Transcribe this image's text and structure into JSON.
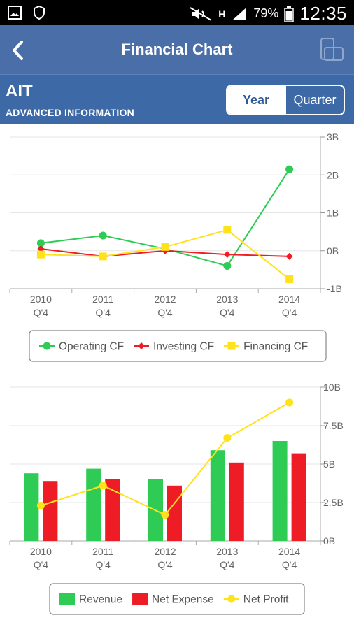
{
  "status_bar": {
    "battery": "79%",
    "time": "12:35",
    "network": "H",
    "icons": [
      "image-icon",
      "shield-icon",
      "mute-icon",
      "signal-icon",
      "battery-icon"
    ]
  },
  "app_bar": {
    "title": "Financial Chart",
    "back_icon": "chevron-left-icon",
    "rotate_icon": "rotate-screen-icon"
  },
  "sub_bar": {
    "symbol": "AIT",
    "company": "ADVANCED INFORMATION",
    "toggle": {
      "options": [
        "Year",
        "Quarter"
      ],
      "selected": "Year"
    }
  },
  "colors": {
    "header": "#4a6ea8",
    "subheader": "#3d6aa6",
    "green": "#2ecc55",
    "red": "#ee1c24",
    "yellow": "#ffe21a"
  },
  "chart_data": [
    {
      "type": "line",
      "categories": [
        [
          "2010",
          "Q'4"
        ],
        [
          "2011",
          "Q'4"
        ],
        [
          "2012",
          "Q'4"
        ],
        [
          "2013",
          "Q'4"
        ],
        [
          "2014",
          "Q'4"
        ]
      ],
      "y_ticks": [
        "3B",
        "2B",
        "1B",
        "0B",
        "-1B"
      ],
      "ylim": [
        -1,
        3
      ],
      "grid": true,
      "series": [
        {
          "name": "Operating CF",
          "color": "#2ecc55",
          "marker": "circle",
          "values": [
            0.2,
            0.4,
            0.05,
            -0.4,
            2.15
          ]
        },
        {
          "name": "Investing CF",
          "color": "#ee1c24",
          "marker": "diamond",
          "values": [
            0.05,
            -0.15,
            0.0,
            -0.1,
            -0.15
          ]
        },
        {
          "name": "Financing CF",
          "color": "#ffe21a",
          "marker": "square",
          "values": [
            -0.1,
            -0.15,
            0.1,
            0.55,
            -0.75
          ]
        }
      ],
      "legend": "bottom"
    },
    {
      "type": "bar",
      "categories": [
        [
          "2010",
          "Q'4"
        ],
        [
          "2011",
          "Q'4"
        ],
        [
          "2012",
          "Q'4"
        ],
        [
          "2013",
          "Q'4"
        ],
        [
          "2014",
          "Q'4"
        ]
      ],
      "y_ticks": [
        "10B",
        "7.5B",
        "5B",
        "2.5B",
        "0B"
      ],
      "ylim": [
        0,
        10
      ],
      "grid": true,
      "series": [
        {
          "name": "Revenue",
          "color": "#2ecc55",
          "kind": "bar",
          "values": [
            4.4,
            4.7,
            4.0,
            5.9,
            6.5
          ]
        },
        {
          "name": "Net Expense",
          "color": "#ee1c24",
          "kind": "bar",
          "values": [
            3.9,
            4.0,
            3.6,
            5.1,
            5.7
          ]
        },
        {
          "name": "Net Profit",
          "color": "#ffe21a",
          "kind": "line",
          "values": [
            2.3,
            3.6,
            1.7,
            6.7,
            9.0
          ]
        }
      ],
      "legend": "bottom"
    }
  ]
}
